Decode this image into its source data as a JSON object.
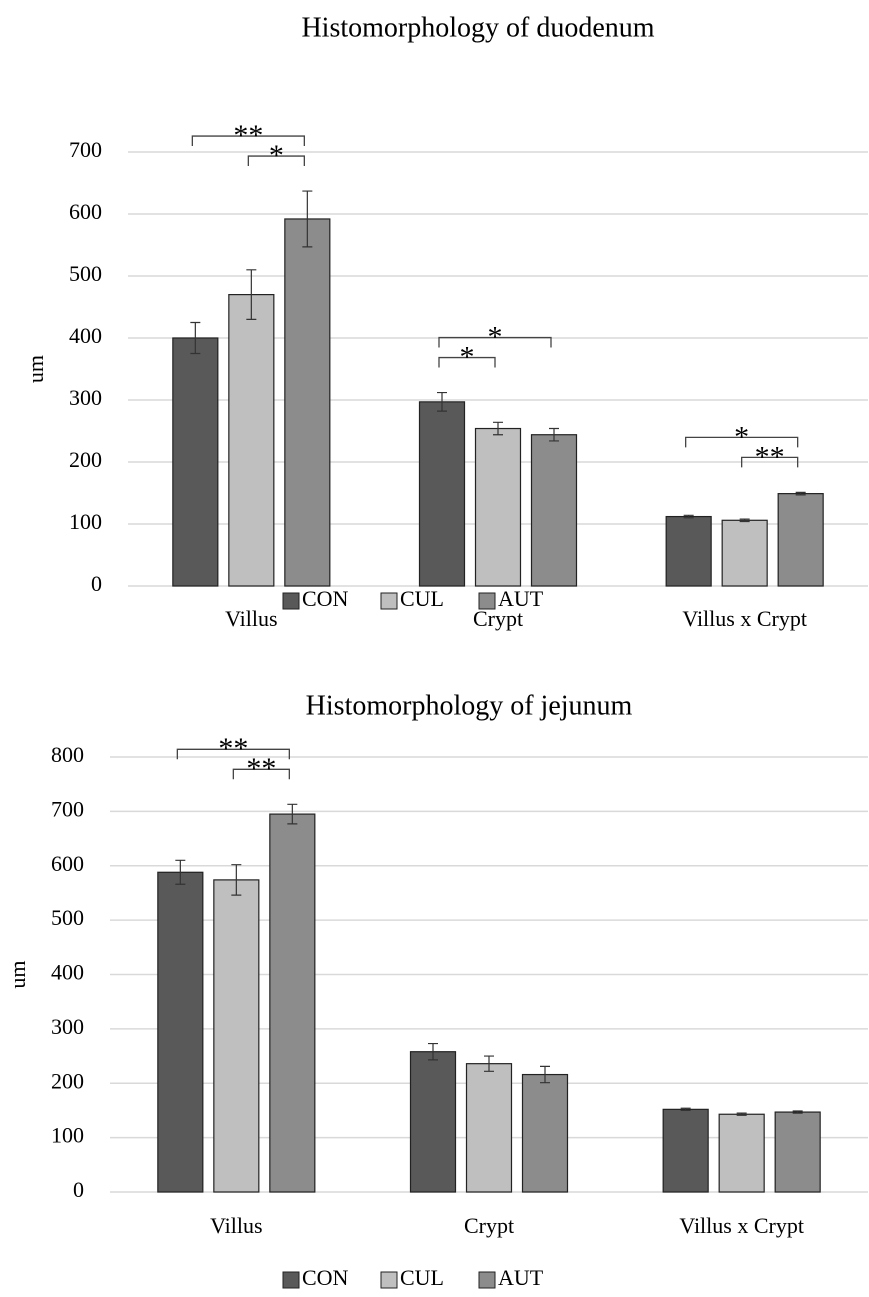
{
  "chart_data": [
    {
      "type": "bar",
      "title": "Histomorphology of duodenum",
      "y_label": "um",
      "categories": [
        "Villus",
        "Crypt",
        "Villus x Crypt"
      ],
      "series": [
        {
          "name": "CON",
          "color": "#595959",
          "values": [
            400,
            297,
            112
          ],
          "errors": [
            25,
            15,
            2
          ]
        },
        {
          "name": "CUL",
          "color": "#bfbfbf",
          "values": [
            470,
            254,
            106
          ],
          "errors": [
            40,
            10,
            2
          ]
        },
        {
          "name": "AUT",
          "color": "#8c8c8c",
          "values": [
            592,
            244,
            149
          ],
          "errors": [
            45,
            10,
            2
          ]
        }
      ],
      "ylim": [
        0,
        700
      ],
      "yticks": [
        0,
        100,
        200,
        300,
        400,
        500,
        600,
        700
      ],
      "grid": true,
      "annotations": [
        {
          "text": "**",
          "category": "Villus",
          "from": "CON",
          "to": "AUT"
        },
        {
          "text": "*",
          "category": "Villus",
          "from": "CUL",
          "to": "AUT"
        },
        {
          "text": "*",
          "category": "Crypt",
          "from": "CON",
          "to": "AUT"
        },
        {
          "text": "*",
          "category": "Crypt",
          "from": "CON",
          "to": "CUL"
        },
        {
          "text": "*",
          "category": "Villus x Crypt",
          "from": "CON",
          "to": "AUT"
        },
        {
          "text": "**",
          "category": "Villus x Crypt",
          "from": "CUL",
          "to": "AUT"
        }
      ]
    },
    {
      "type": "bar",
      "title": "Histomorphology of jejunum",
      "y_label": "um",
      "categories": [
        "Villus",
        "Crypt",
        "Villus x Crypt"
      ],
      "series": [
        {
          "name": "CON",
          "color": "#595959",
          "values": [
            588,
            258,
            152
          ],
          "errors": [
            22,
            15,
            2
          ]
        },
        {
          "name": "CUL",
          "color": "#bfbfbf",
          "values": [
            574,
            236,
            143
          ],
          "errors": [
            28,
            14,
            2
          ]
        },
        {
          "name": "AUT",
          "color": "#8c8c8c",
          "values": [
            695,
            216,
            147
          ],
          "errors": [
            18,
            15,
            2
          ]
        }
      ],
      "ylim": [
        0,
        800
      ],
      "yticks": [
        0,
        100,
        200,
        300,
        400,
        500,
        600,
        700,
        800
      ],
      "grid": true,
      "annotations": [
        {
          "text": "**",
          "category": "Villus",
          "from": "CON",
          "to": "AUT"
        },
        {
          "text": "**",
          "category": "Villus",
          "from": "CUL",
          "to": "AUT"
        }
      ]
    }
  ]
}
